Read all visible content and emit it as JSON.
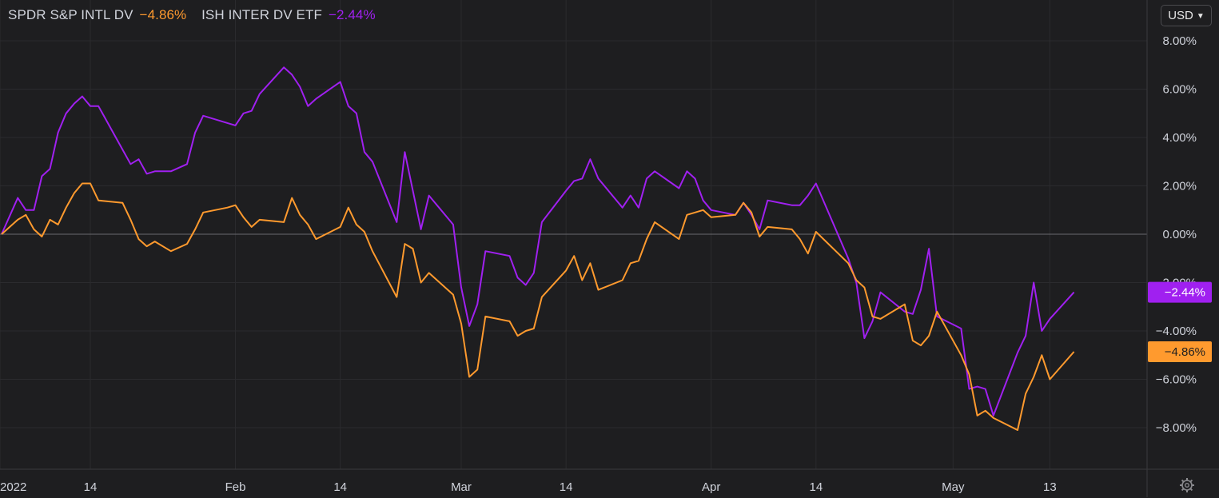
{
  "legend": [
    {
      "name": "SPDR S&P INTL DV",
      "value": "−4.86%",
      "color": "#ff9a2e"
    },
    {
      "name": "ISH INTER DV ETF",
      "value": "−2.44%",
      "color": "#a020f0"
    }
  ],
  "currency": {
    "label": "USD"
  },
  "icons": {
    "currency_dropdown": "chevron-down-icon",
    "settings": "gear-icon"
  },
  "colors": {
    "background": "#1e1e20",
    "grid": "#2b2b2e",
    "text": "#d1d4dc",
    "zero_line": "#6b6b6f"
  },
  "chart_data": {
    "type": "line",
    "title": "",
    "xlabel": "",
    "ylabel": "",
    "x_start": "2022-01-03",
    "x_end": "2022-05-20",
    "x_ticks": [
      {
        "date": "2022-01-01",
        "label": "2022"
      },
      {
        "date": "2022-01-14",
        "label": "14"
      },
      {
        "date": "2022-02-01",
        "label": "Feb"
      },
      {
        "date": "2022-02-14",
        "label": "14"
      },
      {
        "date": "2022-03-01",
        "label": "Mar"
      },
      {
        "date": "2022-03-14",
        "label": "14"
      },
      {
        "date": "2022-04-01",
        "label": "Apr"
      },
      {
        "date": "2022-04-14",
        "label": "14"
      },
      {
        "date": "2022-05-01",
        "label": "May"
      },
      {
        "date": "2022-05-13",
        "label": "13"
      }
    ],
    "y_ticks": [
      8,
      6,
      4,
      2,
      0,
      -2,
      -4,
      -6,
      -8
    ],
    "y_tick_labels": [
      "8.00%",
      "6.00%",
      "4.00%",
      "2.00%",
      "0.00%",
      "−2.00%",
      "−4.00%",
      "−6.00%",
      "−8.00%"
    ],
    "ylim": [
      -9.5,
      9.5
    ],
    "grid": true,
    "series": [
      {
        "name": "ISH INTER DV ETF",
        "color": "#a020f0",
        "last_label": "−2.44%",
        "points": [
          [
            "2022-01-03",
            0.0
          ],
          [
            "2022-01-05",
            1.5
          ],
          [
            "2022-01-06",
            1.0
          ],
          [
            "2022-01-07",
            1.0
          ],
          [
            "2022-01-08",
            2.4
          ],
          [
            "2022-01-09",
            2.7
          ],
          [
            "2022-01-10",
            4.2
          ],
          [
            "2022-01-11",
            5.0
          ],
          [
            "2022-01-12",
            5.4
          ],
          [
            "2022-01-13",
            5.7
          ],
          [
            "2022-01-14",
            5.3
          ],
          [
            "2022-01-15",
            5.3
          ],
          [
            "2022-01-18",
            3.5
          ],
          [
            "2022-01-19",
            2.9
          ],
          [
            "2022-01-20",
            3.1
          ],
          [
            "2022-01-21",
            2.5
          ],
          [
            "2022-01-22",
            2.6
          ],
          [
            "2022-01-24",
            2.6
          ],
          [
            "2022-01-26",
            2.9
          ],
          [
            "2022-01-27",
            4.2
          ],
          [
            "2022-01-28",
            4.9
          ],
          [
            "2022-01-31",
            4.6
          ],
          [
            "2022-02-01",
            4.5
          ],
          [
            "2022-02-02",
            5.0
          ],
          [
            "2022-02-03",
            5.1
          ],
          [
            "2022-02-04",
            5.8
          ],
          [
            "2022-02-07",
            6.9
          ],
          [
            "2022-02-08",
            6.6
          ],
          [
            "2022-02-09",
            6.1
          ],
          [
            "2022-02-10",
            5.3
          ],
          [
            "2022-02-11",
            5.6
          ],
          [
            "2022-02-14",
            6.3
          ],
          [
            "2022-02-15",
            5.3
          ],
          [
            "2022-02-16",
            5.0
          ],
          [
            "2022-02-17",
            3.4
          ],
          [
            "2022-02-18",
            3.0
          ],
          [
            "2022-02-21",
            0.5
          ],
          [
            "2022-02-22",
            3.4
          ],
          [
            "2022-02-23",
            1.8
          ],
          [
            "2022-02-24",
            0.2
          ],
          [
            "2022-02-25",
            1.6
          ],
          [
            "2022-02-28",
            0.4
          ],
          [
            "2022-03-01",
            -2.2
          ],
          [
            "2022-03-02",
            -3.8
          ],
          [
            "2022-03-03",
            -2.9
          ],
          [
            "2022-03-04",
            -0.7
          ],
          [
            "2022-03-07",
            -0.9
          ],
          [
            "2022-03-08",
            -1.8
          ],
          [
            "2022-03-09",
            -2.1
          ],
          [
            "2022-03-10",
            -1.6
          ],
          [
            "2022-03-11",
            0.5
          ],
          [
            "2022-03-14",
            1.8
          ],
          [
            "2022-03-15",
            2.2
          ],
          [
            "2022-03-16",
            2.3
          ],
          [
            "2022-03-17",
            3.1
          ],
          [
            "2022-03-18",
            2.3
          ],
          [
            "2022-03-21",
            1.1
          ],
          [
            "2022-03-22",
            1.6
          ],
          [
            "2022-03-23",
            1.1
          ],
          [
            "2022-03-24",
            2.3
          ],
          [
            "2022-03-25",
            2.6
          ],
          [
            "2022-03-28",
            1.9
          ],
          [
            "2022-03-29",
            2.6
          ],
          [
            "2022-03-30",
            2.3
          ],
          [
            "2022-03-31",
            1.4
          ],
          [
            "2022-04-01",
            1.0
          ],
          [
            "2022-04-04",
            0.8
          ],
          [
            "2022-04-05",
            1.3
          ],
          [
            "2022-04-06",
            0.8
          ],
          [
            "2022-04-07",
            0.2
          ],
          [
            "2022-04-08",
            1.4
          ],
          [
            "2022-04-11",
            1.2
          ],
          [
            "2022-04-12",
            1.2
          ],
          [
            "2022-04-13",
            1.6
          ],
          [
            "2022-04-14",
            2.1
          ],
          [
            "2022-04-18",
            -1.0
          ],
          [
            "2022-04-19",
            -2.0
          ],
          [
            "2022-04-20",
            -4.3
          ],
          [
            "2022-04-21",
            -3.6
          ],
          [
            "2022-04-22",
            -2.4
          ],
          [
            "2022-04-25",
            -3.2
          ],
          [
            "2022-04-26",
            -3.3
          ],
          [
            "2022-04-27",
            -2.3
          ],
          [
            "2022-04-28",
            -0.6
          ],
          [
            "2022-04-29",
            -3.4
          ],
          [
            "2022-05-02",
            -3.9
          ],
          [
            "2022-05-03",
            -6.4
          ],
          [
            "2022-05-04",
            -6.3
          ],
          [
            "2022-05-05",
            -6.4
          ],
          [
            "2022-05-06",
            -7.5
          ],
          [
            "2022-05-09",
            -4.9
          ],
          [
            "2022-05-10",
            -4.2
          ],
          [
            "2022-05-11",
            -2.0
          ],
          [
            "2022-05-12",
            -4.0
          ],
          [
            "2022-05-13",
            -3.5
          ],
          [
            "2022-05-16",
            -2.4
          ]
        ]
      },
      {
        "name": "SPDR S&P INTL DV",
        "color": "#ff9a2e",
        "last_label": "−4.86%",
        "points": [
          [
            "2022-01-03",
            0.0
          ],
          [
            "2022-01-05",
            0.6
          ],
          [
            "2022-01-06",
            0.8
          ],
          [
            "2022-01-07",
            0.2
          ],
          [
            "2022-01-08",
            -0.1
          ],
          [
            "2022-01-09",
            0.6
          ],
          [
            "2022-01-10",
            0.4
          ],
          [
            "2022-01-11",
            1.1
          ],
          [
            "2022-01-12",
            1.7
          ],
          [
            "2022-01-13",
            2.1
          ],
          [
            "2022-01-14",
            2.1
          ],
          [
            "2022-01-15",
            1.4
          ],
          [
            "2022-01-18",
            1.3
          ],
          [
            "2022-01-19",
            0.6
          ],
          [
            "2022-01-20",
            -0.2
          ],
          [
            "2022-01-21",
            -0.5
          ],
          [
            "2022-01-22",
            -0.3
          ],
          [
            "2022-01-24",
            -0.7
          ],
          [
            "2022-01-26",
            -0.4
          ],
          [
            "2022-01-27",
            0.2
          ],
          [
            "2022-01-28",
            0.9
          ],
          [
            "2022-01-31",
            1.1
          ],
          [
            "2022-02-01",
            1.2
          ],
          [
            "2022-02-02",
            0.7
          ],
          [
            "2022-02-03",
            0.3
          ],
          [
            "2022-02-04",
            0.6
          ],
          [
            "2022-02-07",
            0.5
          ],
          [
            "2022-02-08",
            1.5
          ],
          [
            "2022-02-09",
            0.8
          ],
          [
            "2022-02-10",
            0.4
          ],
          [
            "2022-02-11",
            -0.2
          ],
          [
            "2022-02-14",
            0.3
          ],
          [
            "2022-02-15",
            1.1
          ],
          [
            "2022-02-16",
            0.4
          ],
          [
            "2022-02-17",
            0.1
          ],
          [
            "2022-02-18",
            -0.7
          ],
          [
            "2022-02-21",
            -2.6
          ],
          [
            "2022-02-22",
            -0.4
          ],
          [
            "2022-02-23",
            -0.6
          ],
          [
            "2022-02-24",
            -2.0
          ],
          [
            "2022-02-25",
            -1.6
          ],
          [
            "2022-02-28",
            -2.5
          ],
          [
            "2022-03-01",
            -3.7
          ],
          [
            "2022-03-02",
            -5.9
          ],
          [
            "2022-03-03",
            -5.6
          ],
          [
            "2022-03-04",
            -3.4
          ],
          [
            "2022-03-07",
            -3.6
          ],
          [
            "2022-03-08",
            -4.2
          ],
          [
            "2022-03-09",
            -4.0
          ],
          [
            "2022-03-10",
            -3.9
          ],
          [
            "2022-03-11",
            -2.6
          ],
          [
            "2022-03-14",
            -1.5
          ],
          [
            "2022-03-15",
            -0.9
          ],
          [
            "2022-03-16",
            -1.9
          ],
          [
            "2022-03-17",
            -1.2
          ],
          [
            "2022-03-18",
            -2.3
          ],
          [
            "2022-03-21",
            -1.9
          ],
          [
            "2022-03-22",
            -1.2
          ],
          [
            "2022-03-23",
            -1.1
          ],
          [
            "2022-03-24",
            -0.2
          ],
          [
            "2022-03-25",
            0.5
          ],
          [
            "2022-03-28",
            -0.2
          ],
          [
            "2022-03-29",
            0.8
          ],
          [
            "2022-03-30",
            0.9
          ],
          [
            "2022-03-31",
            1.0
          ],
          [
            "2022-04-01",
            0.7
          ],
          [
            "2022-04-04",
            0.8
          ],
          [
            "2022-04-05",
            1.3
          ],
          [
            "2022-04-06",
            0.9
          ],
          [
            "2022-04-07",
            -0.1
          ],
          [
            "2022-04-08",
            0.3
          ],
          [
            "2022-04-11",
            0.2
          ],
          [
            "2022-04-12",
            -0.2
          ],
          [
            "2022-04-13",
            -0.8
          ],
          [
            "2022-04-14",
            0.1
          ],
          [
            "2022-04-18",
            -1.2
          ],
          [
            "2022-04-19",
            -1.9
          ],
          [
            "2022-04-20",
            -2.2
          ],
          [
            "2022-04-21",
            -3.4
          ],
          [
            "2022-04-22",
            -3.5
          ],
          [
            "2022-04-25",
            -2.9
          ],
          [
            "2022-04-26",
            -4.4
          ],
          [
            "2022-04-27",
            -4.6
          ],
          [
            "2022-04-28",
            -4.2
          ],
          [
            "2022-04-29",
            -3.2
          ],
          [
            "2022-05-02",
            -5.0
          ],
          [
            "2022-05-03",
            -5.8
          ],
          [
            "2022-05-04",
            -7.5
          ],
          [
            "2022-05-05",
            -7.3
          ],
          [
            "2022-05-06",
            -7.6
          ],
          [
            "2022-05-09",
            -8.1
          ],
          [
            "2022-05-10",
            -6.6
          ],
          [
            "2022-05-11",
            -5.9
          ],
          [
            "2022-05-12",
            -5.0
          ],
          [
            "2022-05-13",
            -6.0
          ],
          [
            "2022-05-16",
            -4.86
          ]
        ]
      }
    ]
  }
}
